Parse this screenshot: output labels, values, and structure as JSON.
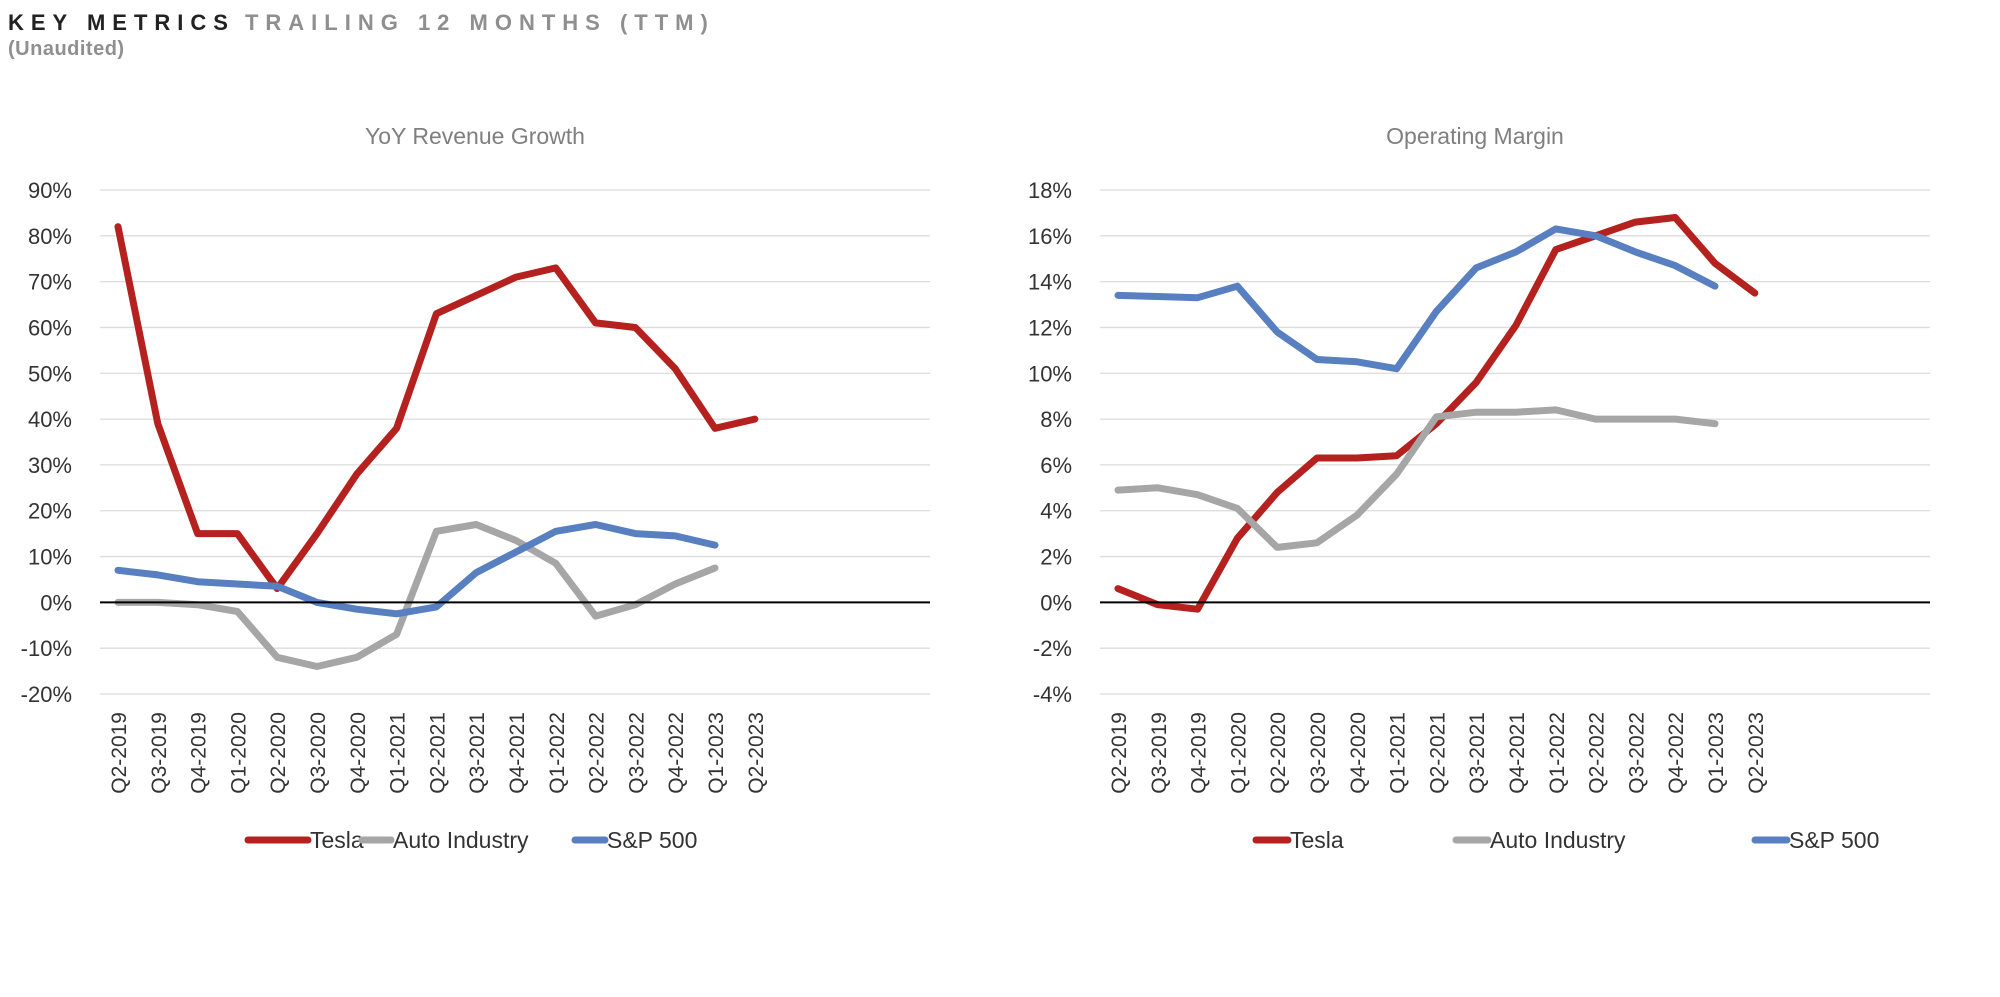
{
  "header": {
    "title": "KEY METRICS",
    "subtitle": "TRAILING 12 MONTHS (TTM)",
    "note": "(Unaudited)"
  },
  "colors": {
    "tesla": "#b4211e",
    "auto": "#a6a6a6",
    "sp500": "#587fbf"
  },
  "chart_data": [
    {
      "type": "line",
      "title": "YoY Revenue Growth",
      "xlabel": "",
      "ylabel": "",
      "ylim": [
        -20,
        90
      ],
      "yticks": [
        -20,
        -10,
        0,
        10,
        20,
        30,
        40,
        50,
        60,
        70,
        80,
        90
      ],
      "tick_suffix": "%",
      "grid": true,
      "legend": "bottom",
      "categories": [
        "Q2-2019",
        "Q3-2019",
        "Q4-2019",
        "Q1-2020",
        "Q2-2020",
        "Q3-2020",
        "Q4-2020",
        "Q1-2021",
        "Q2-2021",
        "Q3-2021",
        "Q4-2021",
        "Q1-2022",
        "Q2-2022",
        "Q3-2022",
        "Q4-2022",
        "Q1-2023",
        "Q2-2023"
      ],
      "series": [
        {
          "name": "Tesla",
          "color_key": "tesla",
          "values": [
            82,
            39,
            15,
            15,
            3,
            15,
            28,
            38,
            63,
            67,
            71,
            73,
            61,
            60,
            51,
            38,
            40
          ]
        },
        {
          "name": "Auto Industry",
          "color_key": "auto",
          "values": [
            0,
            0,
            -0.5,
            -2,
            -12,
            -14,
            -12,
            -7,
            15.5,
            17,
            13.5,
            8.5,
            -3,
            -0.5,
            4,
            7.5,
            null
          ]
        },
        {
          "name": "S&P 500",
          "color_key": "sp500",
          "values": [
            7,
            6,
            4.5,
            4,
            3.5,
            0,
            -1.5,
            -2.5,
            -1,
            6.5,
            11,
            15.5,
            17,
            15,
            14.5,
            12.5,
            null
          ]
        }
      ]
    },
    {
      "type": "line",
      "title": "Operating Margin",
      "xlabel": "",
      "ylabel": "",
      "ylim": [
        -4,
        18
      ],
      "yticks": [
        -4,
        -2,
        0,
        2,
        4,
        6,
        8,
        10,
        12,
        14,
        16,
        18
      ],
      "tick_suffix": "%",
      "grid": true,
      "legend": "bottom",
      "categories": [
        "Q2-2019",
        "Q3-2019",
        "Q4-2019",
        "Q1-2020",
        "Q2-2020",
        "Q3-2020",
        "Q4-2020",
        "Q1-2021",
        "Q2-2021",
        "Q3-2021",
        "Q4-2021",
        "Q1-2022",
        "Q2-2022",
        "Q3-2022",
        "Q4-2022",
        "Q1-2023",
        "Q2-2023"
      ],
      "series": [
        {
          "name": "Tesla",
          "color_key": "tesla",
          "values": [
            0.6,
            -0.1,
            -0.3,
            2.8,
            4.8,
            6.3,
            6.3,
            6.4,
            7.8,
            9.6,
            12.1,
            15.4,
            16.0,
            16.6,
            16.8,
            14.8,
            13.5
          ]
        },
        {
          "name": "Auto Industry",
          "color_key": "auto",
          "values": [
            4.9,
            5.0,
            4.7,
            4.1,
            2.4,
            2.6,
            3.8,
            5.6,
            8.1,
            8.3,
            8.3,
            8.4,
            8.0,
            8.0,
            8.0,
            7.8,
            null
          ]
        },
        {
          "name": "S&P 500",
          "color_key": "sp500",
          "values": [
            13.4,
            13.35,
            13.3,
            13.8,
            11.8,
            10.6,
            10.5,
            10.2,
            12.7,
            14.6,
            15.3,
            16.3,
            16.0,
            15.3,
            14.7,
            13.8,
            null
          ]
        }
      ]
    }
  ]
}
